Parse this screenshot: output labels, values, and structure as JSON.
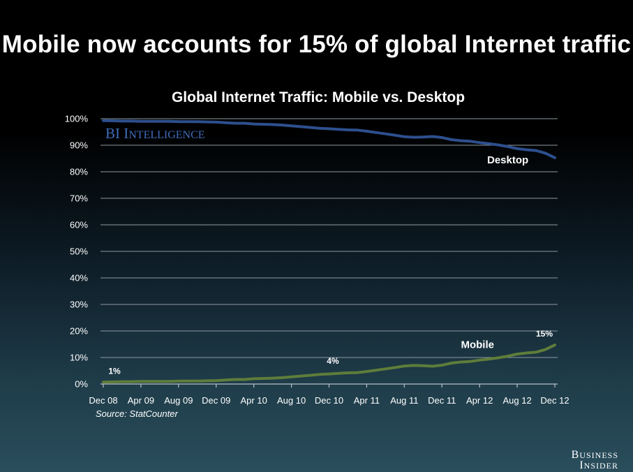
{
  "headline": "Mobile now accounts for 15% of global Internet traffic",
  "watermark": {
    "big1": "BI",
    "big2": "I",
    "small": "NTELLIGENCE"
  },
  "source": "Source: StatCounter",
  "brand": {
    "line1_big": "B",
    "line1_small": "USINESS",
    "line2_big": "I",
    "line2_small": "NSIDER"
  },
  "colors": {
    "desktop": "#2d4f8e",
    "mobile": "#5e7d3a",
    "watermark": "#3f6dbd"
  },
  "chart_data": {
    "type": "line",
    "title": "Global Internet Traffic: Mobile vs. Desktop",
    "xlabel": "",
    "ylabel": "",
    "ylim": [
      0,
      100
    ],
    "yticks": [
      "0%",
      "10%",
      "20%",
      "30%",
      "40%",
      "50%",
      "60%",
      "70%",
      "80%",
      "90%",
      "100%"
    ],
    "xticks": [
      "Dec 08",
      "Apr 09",
      "Aug 09",
      "Dec 09",
      "Apr 10",
      "Aug 10",
      "Dec 10",
      "Apr 11",
      "Aug 11",
      "Dec 11",
      "Apr 12",
      "Aug 12",
      "Dec 12"
    ],
    "grid": true,
    "x": [
      "Dec 08",
      "Jan 09",
      "Feb 09",
      "Mar 09",
      "Apr 09",
      "May 09",
      "Jun 09",
      "Jul 09",
      "Aug 09",
      "Sep 09",
      "Oct 09",
      "Nov 09",
      "Dec 09",
      "Jan 10",
      "Feb 10",
      "Mar 10",
      "Apr 10",
      "May 10",
      "Jun 10",
      "Jul 10",
      "Aug 10",
      "Sep 10",
      "Oct 10",
      "Nov 10",
      "Dec 10",
      "Jan 11",
      "Feb 11",
      "Mar 11",
      "Apr 11",
      "May 11",
      "Jun 11",
      "Jul 11",
      "Aug 11",
      "Sep 11",
      "Oct 11",
      "Nov 11",
      "Dec 11",
      "Jan 12",
      "Feb 12",
      "Mar 12",
      "Apr 12",
      "May 12",
      "Jun 12",
      "Jul 12",
      "Aug 12",
      "Sep 12",
      "Oct 12",
      "Nov 12",
      "Dec 12"
    ],
    "series": [
      {
        "name": "Desktop",
        "color": "#2d4f8e",
        "values": [
          99.3,
          99.2,
          99.1,
          99.1,
          99.0,
          99.0,
          99.0,
          99.0,
          98.9,
          98.9,
          98.9,
          98.8,
          98.7,
          98.5,
          98.3,
          98.3,
          98.0,
          97.9,
          97.8,
          97.6,
          97.3,
          97.0,
          96.7,
          96.4,
          96.2,
          96.0,
          95.8,
          95.7,
          95.3,
          94.8,
          94.3,
          93.8,
          93.2,
          93.0,
          93.1,
          93.3,
          92.9,
          92.1,
          91.7,
          91.5,
          91.0,
          90.6,
          90.1,
          89.5,
          88.7,
          88.3,
          88.0,
          87.0,
          85.3
        ]
      },
      {
        "name": "Mobile",
        "color": "#5e7d3a",
        "values": [
          0.7,
          0.8,
          0.9,
          0.9,
          1.0,
          1.0,
          1.0,
          1.0,
          1.1,
          1.1,
          1.1,
          1.2,
          1.3,
          1.5,
          1.7,
          1.7,
          2.0,
          2.1,
          2.2,
          2.4,
          2.7,
          3.0,
          3.3,
          3.6,
          3.8,
          4.0,
          4.2,
          4.3,
          4.7,
          5.2,
          5.7,
          6.2,
          6.8,
          7.0,
          6.9,
          6.7,
          7.1,
          7.9,
          8.3,
          8.5,
          9.0,
          9.4,
          9.9,
          10.5,
          11.3,
          11.7,
          12.0,
          13.0,
          14.7
        ]
      }
    ],
    "annotations": [
      {
        "text": "1%",
        "x": "Dec 08",
        "series": "Mobile"
      },
      {
        "text": "4%",
        "x": "Jan 11",
        "series": "Mobile"
      },
      {
        "text": "15%",
        "x": "Dec 12",
        "series": "Mobile"
      }
    ]
  }
}
